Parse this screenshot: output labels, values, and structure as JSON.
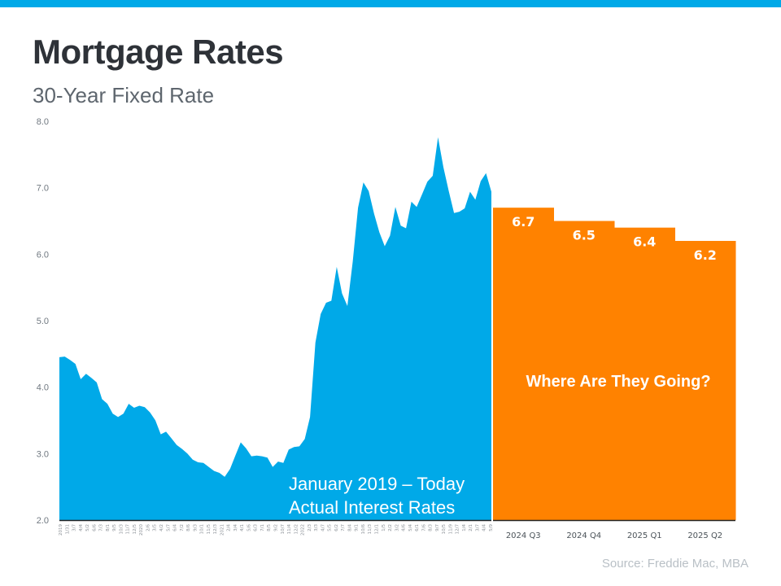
{
  "header": {
    "title": "Mortgage Rates",
    "subtitle": "30-Year Fixed Rate"
  },
  "source": "Source: Freddie Mac, MBA",
  "colors": {
    "accent_bar": "#00a9e8",
    "actual_fill": "#00a9e8",
    "forecast_fill": "#ff8200",
    "axis_text": "#707880",
    "baseline": "#222222"
  },
  "chart_data": [
    {
      "type": "area",
      "title": "",
      "annotation": [
        "January 2019 – Today",
        "Actual Interest Rates"
      ],
      "ylim": [
        2.0,
        8.0
      ],
      "yticks": [
        "8.0",
        "7.0",
        "6.0",
        "5.0",
        "4.0",
        "3.0",
        "2.0"
      ],
      "x_tick_labels": [
        "2019",
        "1/31",
        "3/7",
        "4/4",
        "5/2",
        "6/6",
        "7/3",
        "8/1",
        "9/5",
        "10/3",
        "11/7",
        "12/5",
        "2020",
        "2/6",
        "3/5",
        "4/2",
        "5/7",
        "6/4",
        "7/2",
        "8/6",
        "9/3",
        "10/1",
        "11/5",
        "12/3",
        "2021",
        "2/4",
        "3/4",
        "4/1",
        "5/6",
        "6/3",
        "7/1",
        "8/5",
        "9/2",
        "10/7",
        "11/4",
        "12/2",
        "2022",
        "2/3",
        "3/3",
        "4/7",
        "5/5",
        "6/2",
        "7/7",
        "8/4",
        "9/1",
        "10/6",
        "11/3",
        "12/1",
        "1/5",
        "2/2",
        "3/2",
        "4/6",
        "5/4",
        "6/1",
        "7/6",
        "8/3",
        "9/7",
        "10/5",
        "11/9",
        "12/7",
        "1/4",
        "2/1",
        "3/7",
        "4/4",
        "5/9"
      ],
      "series": [
        {
          "values": [
            4.45,
            4.46,
            4.41,
            4.35,
            4.12,
            4.2,
            4.14,
            4.07,
            3.82,
            3.75,
            3.6,
            3.55,
            3.6,
            3.75,
            3.69,
            3.72,
            3.7,
            3.62,
            3.5,
            3.29,
            3.33,
            3.23,
            3.13,
            3.07,
            3.0,
            2.91,
            2.87,
            2.86,
            2.8,
            2.74,
            2.71,
            2.65,
            2.77,
            2.97,
            3.17,
            3.08,
            2.96,
            2.97,
            2.96,
            2.94,
            2.8,
            2.88,
            2.86,
            3.06,
            3.1,
            3.11,
            3.22,
            3.55,
            4.67,
            5.1,
            5.27,
            5.3,
            5.81,
            5.41,
            5.22,
            5.89,
            6.7,
            7.08,
            6.95,
            6.61,
            6.33,
            6.12,
            6.28,
            6.71,
            6.43,
            6.39,
            6.79,
            6.71,
            6.9,
            7.09,
            7.18,
            7.76,
            7.31,
            6.95,
            6.62,
            6.64,
            6.69,
            6.94,
            6.82,
            7.1,
            7.22,
            6.94
          ]
        }
      ]
    },
    {
      "type": "bar",
      "title": "",
      "annotation": "Where Are They Going?",
      "categories": [
        "2024 Q3",
        "2024 Q4",
        "2025 Q1",
        "2025 Q2"
      ],
      "values": [
        6.7,
        6.5,
        6.4,
        6.2
      ],
      "labels": [
        "6.7",
        "6.5",
        "6.4",
        "6.2"
      ],
      "ylim": [
        2.0,
        8.0
      ]
    }
  ]
}
